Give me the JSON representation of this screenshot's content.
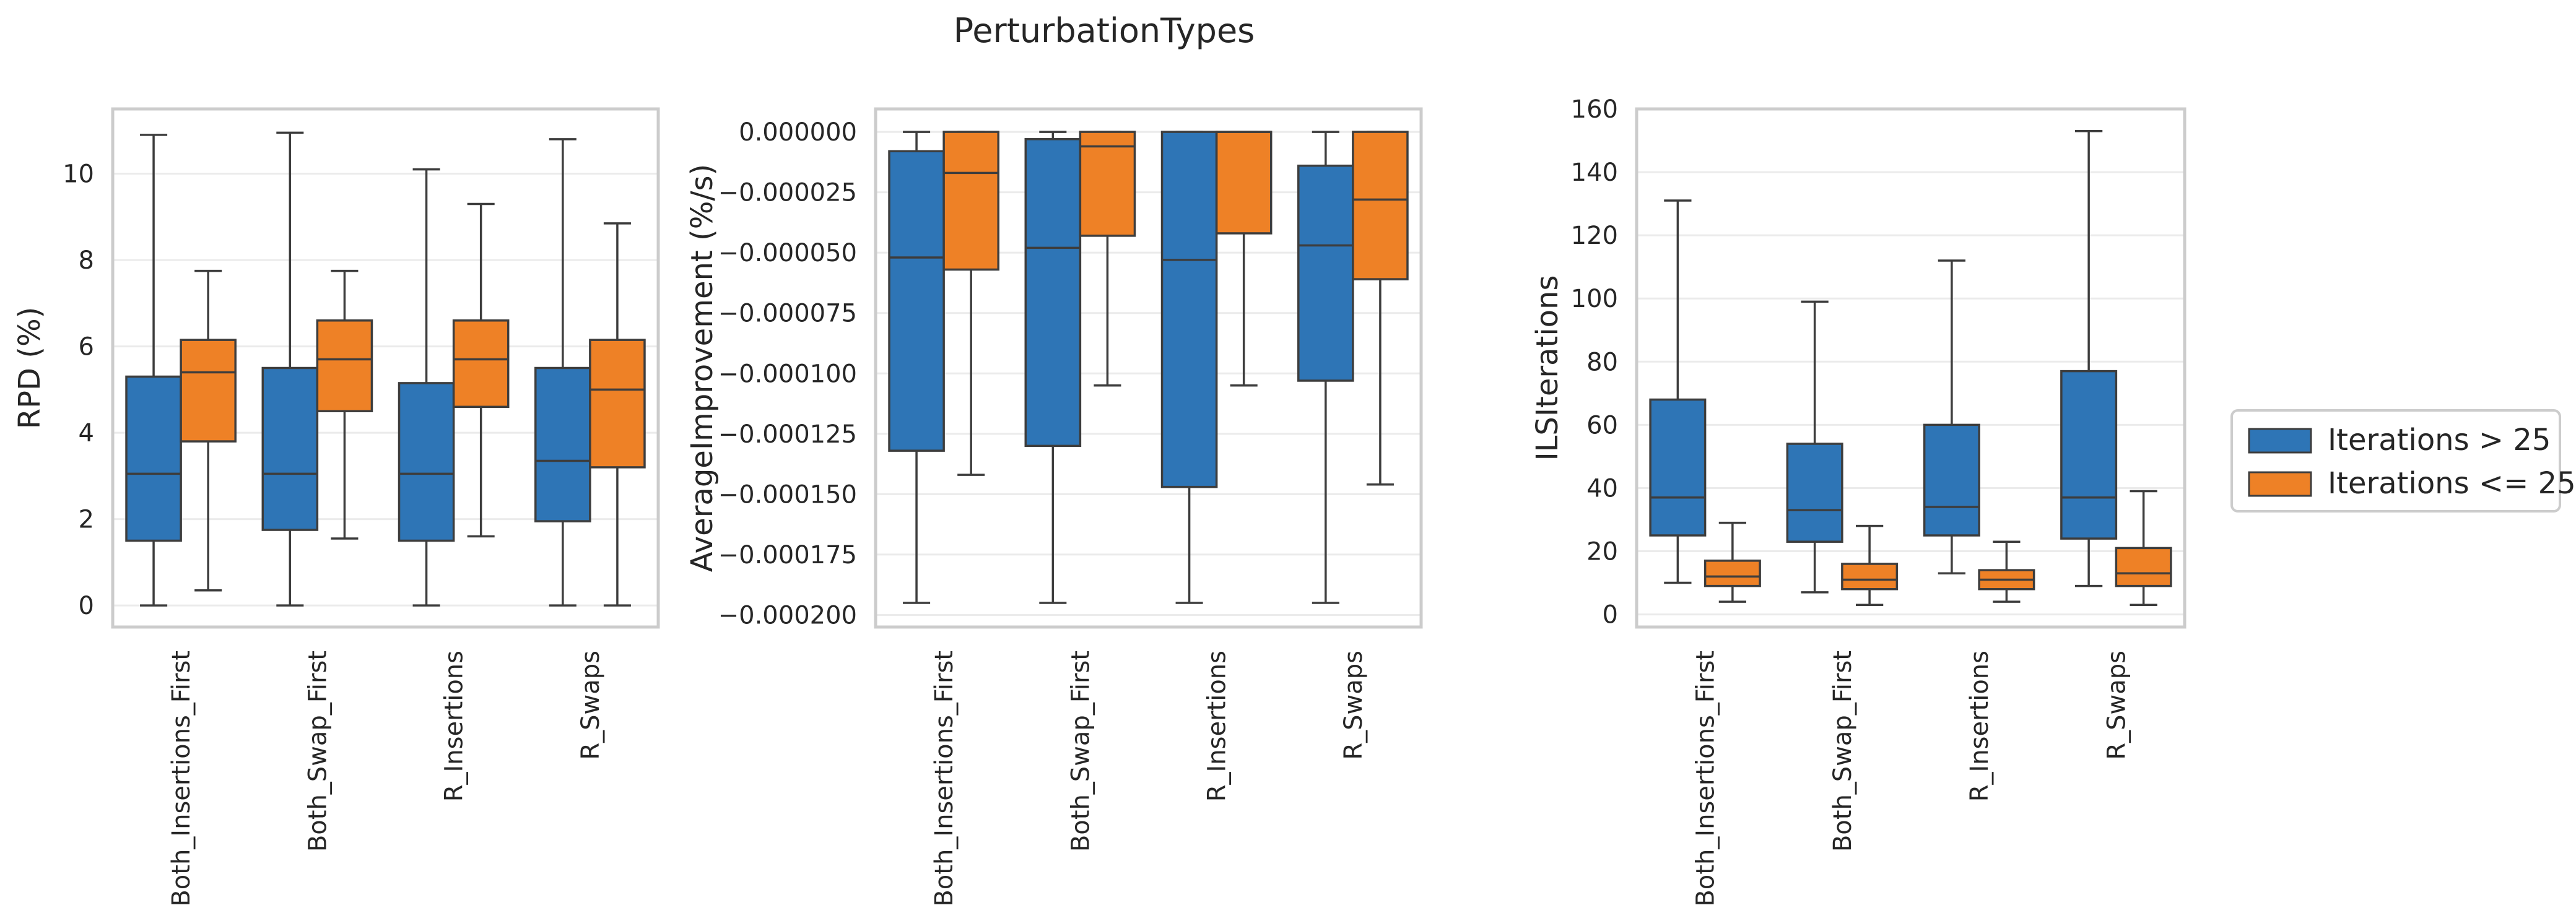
{
  "figure": {
    "title": "PerturbationTypes"
  },
  "legend": {
    "placement": "right",
    "items": [
      {
        "label": "Iterations > 25",
        "color": "#2e75b6"
      },
      {
        "label": "Iterations <= 25",
        "color": "#ee8126"
      }
    ]
  },
  "chart_data": [
    {
      "type": "box",
      "ylabel": "RPD (%)",
      "xlabel": "",
      "ylim": [
        -0.5,
        11.5
      ],
      "yticks": [
        0,
        2,
        4,
        6,
        8,
        10
      ],
      "yticklabels": [
        "0",
        "2",
        "4",
        "6",
        "8",
        "10"
      ],
      "grid": true,
      "categories": [
        "Both_Insertions_First",
        "Both_Swap_First",
        "R_Insertions",
        "R_Swaps"
      ],
      "series": [
        {
          "name": "Iterations > 25",
          "color": "#2e75b6",
          "boxes": [
            {
              "whislo": 0.0,
              "q1": 1.5,
              "med": 3.05,
              "q3": 5.3,
              "whishi": 10.9
            },
            {
              "whislo": 0.0,
              "q1": 1.75,
              "med": 3.05,
              "q3": 5.5,
              "whishi": 10.95
            },
            {
              "whislo": 0.0,
              "q1": 1.5,
              "med": 3.05,
              "q3": 5.15,
              "whishi": 10.1
            },
            {
              "whislo": 0.0,
              "q1": 1.95,
              "med": 3.35,
              "q3": 5.5,
              "whishi": 10.8
            }
          ]
        },
        {
          "name": "Iterations <= 25",
          "color": "#ee8126",
          "boxes": [
            {
              "whislo": 0.35,
              "q1": 3.8,
              "med": 5.4,
              "q3": 6.15,
              "whishi": 7.75
            },
            {
              "whislo": 1.55,
              "q1": 4.5,
              "med": 5.7,
              "q3": 6.6,
              "whishi": 7.75
            },
            {
              "whislo": 1.6,
              "q1": 4.6,
              "med": 5.7,
              "q3": 6.6,
              "whishi": 9.3
            },
            {
              "whislo": 0.0,
              "q1": 3.2,
              "med": 5.0,
              "q3": 6.15,
              "whishi": 8.85
            }
          ]
        }
      ]
    },
    {
      "type": "box",
      "ylabel": "AverageImprovement (%/s)",
      "xlabel": "",
      "ylim": [
        -0.000205,
        9.5e-06
      ],
      "yticks": [
        0.0,
        -2.5e-05,
        -5e-05,
        -7.5e-05,
        -0.0001,
        -0.000125,
        -0.00015,
        -0.000175,
        -0.0002
      ],
      "yticklabels": [
        "0.000000",
        "−0.000025",
        "−0.000050",
        "−0.000075",
        "−0.000100",
        "−0.000125",
        "−0.000150",
        "−0.000175",
        "−0.000200"
      ],
      "grid": true,
      "categories": [
        "Both_Insertions_First",
        "Both_Swap_First",
        "R_Insertions",
        "R_Swaps"
      ],
      "series": [
        {
          "name": "Iterations > 25",
          "color": "#2e75b6",
          "boxes": [
            {
              "whislo": -0.000195,
              "q1": -0.000132,
              "med": -5.2e-05,
              "q3": -8e-06,
              "whishi": 0.0
            },
            {
              "whislo": -0.000195,
              "q1": -0.00013,
              "med": -4.8e-05,
              "q3": -3e-06,
              "whishi": 0.0
            },
            {
              "whislo": -0.000195,
              "q1": -0.000147,
              "med": -5.3e-05,
              "q3": 0.0,
              "whishi": 0.0
            },
            {
              "whislo": -0.000195,
              "q1": -0.000103,
              "med": -4.7e-05,
              "q3": -1.4e-05,
              "whishi": 0.0
            }
          ]
        },
        {
          "name": "Iterations <= 25",
          "color": "#ee8126",
          "boxes": [
            {
              "whislo": -0.000142,
              "q1": -5.7e-05,
              "med": -1.7e-05,
              "q3": 0.0,
              "whishi": 0.0
            },
            {
              "whislo": -0.000105,
              "q1": -4.3e-05,
              "med": -6e-06,
              "q3": 0.0,
              "whishi": 0.0
            },
            {
              "whislo": -0.000105,
              "q1": -4.2e-05,
              "med": 0.0,
              "q3": 0.0,
              "whishi": 0.0
            },
            {
              "whislo": -0.000146,
              "q1": -6.1e-05,
              "med": -2.8e-05,
              "q3": 0.0,
              "whishi": 0.0
            }
          ]
        }
      ]
    },
    {
      "type": "box",
      "ylabel": "ILSIterations",
      "xlabel": "",
      "ylim": [
        -4,
        160
      ],
      "yticks": [
        0,
        20,
        40,
        60,
        80,
        100,
        120,
        140,
        160
      ],
      "yticklabels": [
        "0",
        "20",
        "40",
        "60",
        "80",
        "100",
        "120",
        "140",
        "160"
      ],
      "grid": true,
      "categories": [
        "Both_Insertions_First",
        "Both_Swap_First",
        "R_Insertions",
        "R_Swaps"
      ],
      "series": [
        {
          "name": "Iterations > 25",
          "color": "#2e75b6",
          "boxes": [
            {
              "whislo": 10,
              "q1": 25,
              "med": 37,
              "q3": 68,
              "whishi": 131
            },
            {
              "whislo": 7,
              "q1": 23,
              "med": 33,
              "q3": 54,
              "whishi": 99
            },
            {
              "whislo": 13,
              "q1": 25,
              "med": 34,
              "q3": 60,
              "whishi": 112
            },
            {
              "whislo": 9,
              "q1": 24,
              "med": 37,
              "q3": 77,
              "whishi": 153
            }
          ]
        },
        {
          "name": "Iterations <= 25",
          "color": "#ee8126",
          "boxes": [
            {
              "whislo": 4,
              "q1": 9,
              "med": 12,
              "q3": 17,
              "whishi": 29
            },
            {
              "whislo": 3,
              "q1": 8,
              "med": 11,
              "q3": 16,
              "whishi": 28
            },
            {
              "whislo": 4,
              "q1": 8,
              "med": 11,
              "q3": 14,
              "whishi": 23
            },
            {
              "whislo": 3,
              "q1": 9,
              "med": 13,
              "q3": 21,
              "whishi": 39
            }
          ]
        }
      ]
    }
  ]
}
